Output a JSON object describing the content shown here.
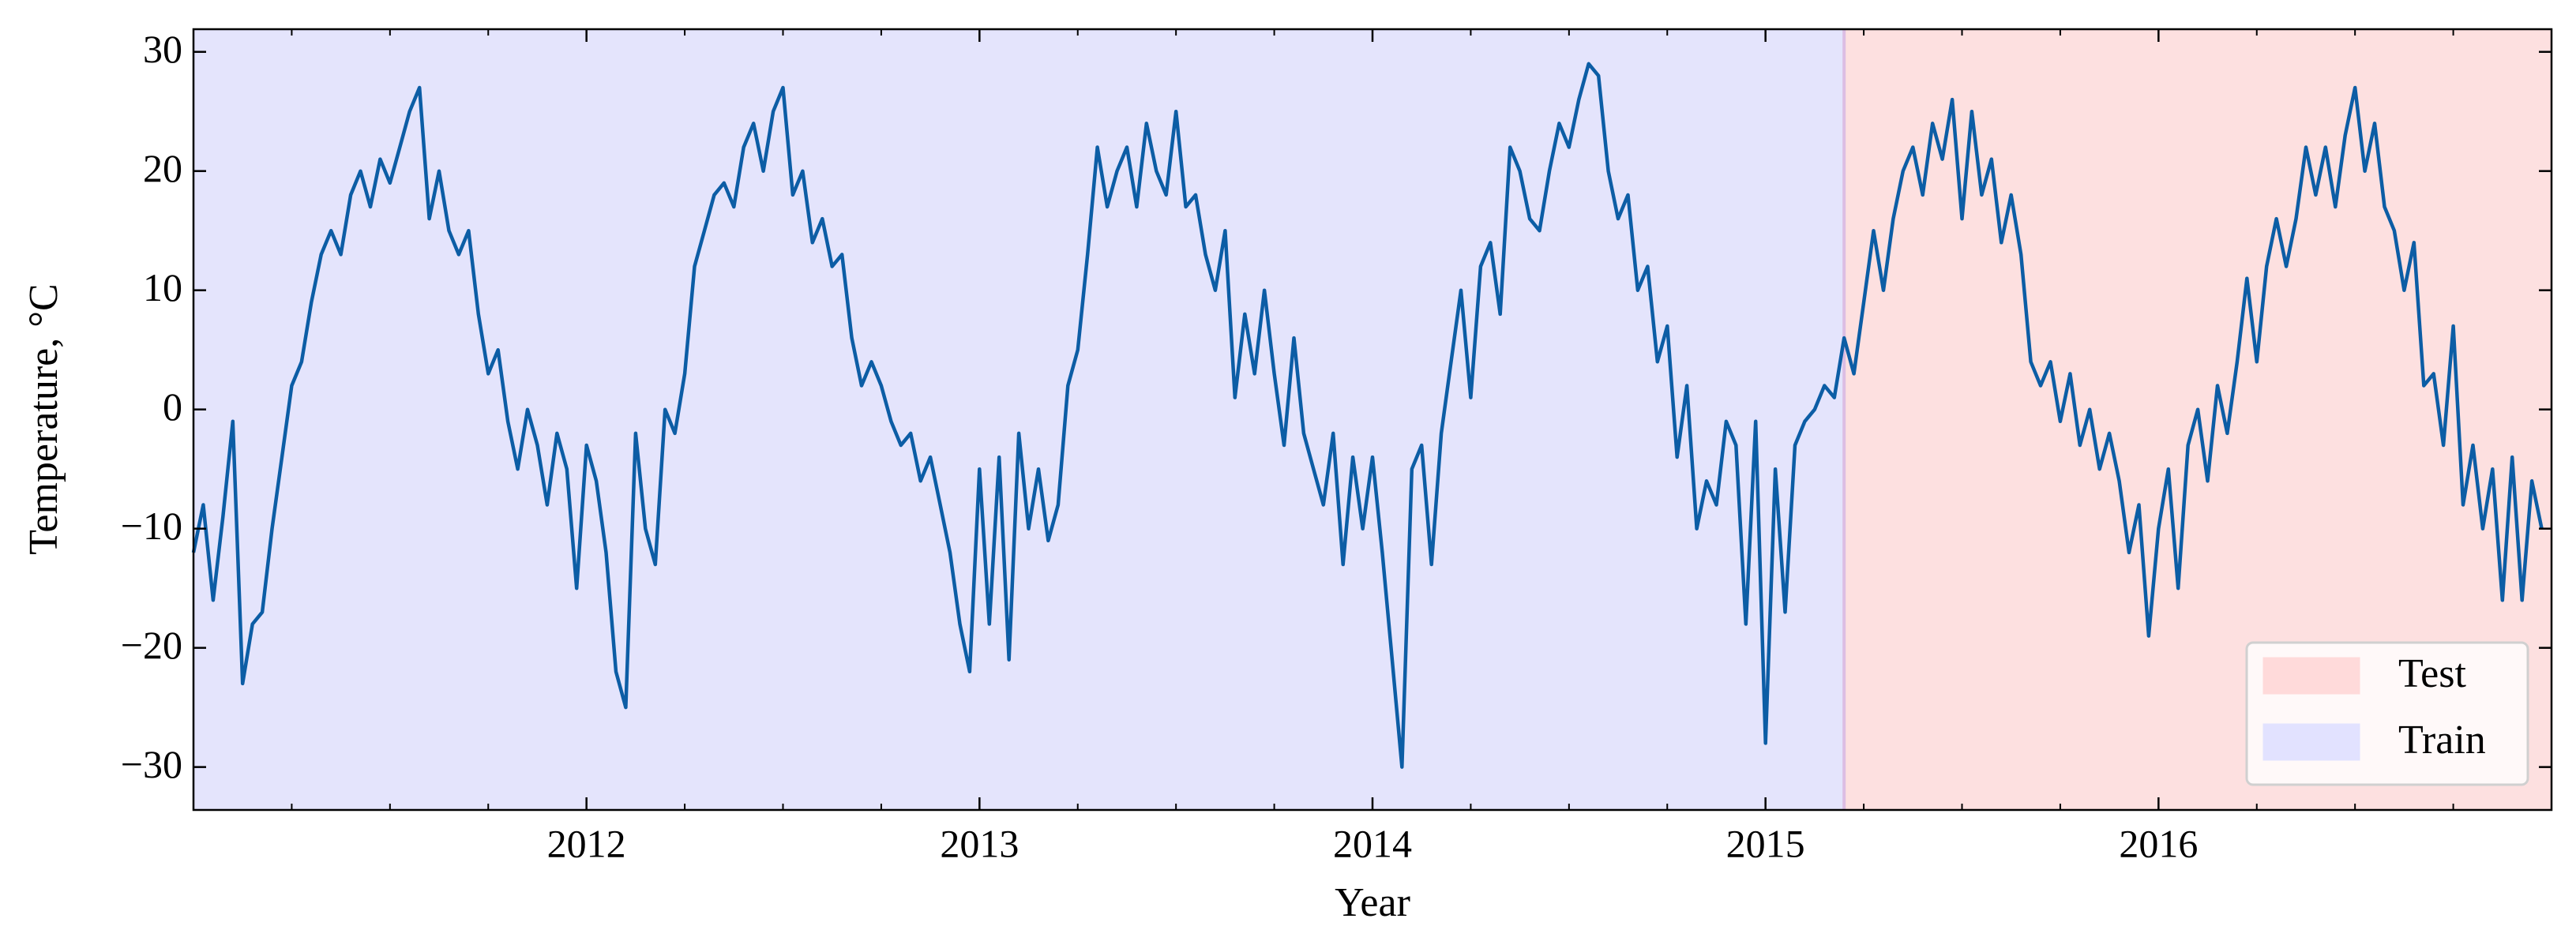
{
  "chart_data": {
    "type": "line",
    "xlabel": "Year",
    "ylabel": "Temperature, °C",
    "xlim": [
      2011.0,
      2017.0
    ],
    "ylim": [
      -33.6,
      31.9
    ],
    "xticks": [
      2012,
      2013,
      2014,
      2015,
      2016
    ],
    "xminorticks": [
      2011.25,
      2011.5,
      2011.75,
      2012.25,
      2012.5,
      2012.75,
      2013.25,
      2013.5,
      2013.75,
      2014.25,
      2014.5,
      2014.75,
      2015.25,
      2015.5,
      2015.75,
      2016.25,
      2016.5,
      2016.75
    ],
    "yticks": [
      {
        "value": -30,
        "label": "−30"
      },
      {
        "value": -20,
        "label": "−20"
      },
      {
        "value": -10,
        "label": "−10"
      },
      0,
      10,
      20,
      30
    ],
    "legend": "lower right",
    "regions": [
      {
        "name": "Test",
        "color": "#fde0e0",
        "x": [
          2015.2,
          2017.0
        ]
      },
      {
        "name": "Train",
        "color": "#e4e4fc",
        "x": [
          2011.0,
          2015.2
        ]
      }
    ],
    "series": [
      {
        "color": "#0c5da5",
        "x": [
          2011,
          2011.025,
          2011.05,
          2011.075,
          2011.1,
          2011.125,
          2011.15,
          2011.175,
          2011.2,
          2011.225,
          2011.25,
          2011.275,
          2011.3,
          2011.325,
          2011.35,
          2011.375,
          2011.4,
          2011.425,
          2011.45,
          2011.475,
          2011.5,
          2011.525,
          2011.55,
          2011.575,
          2011.6,
          2011.625,
          2011.65,
          2011.675,
          2011.7,
          2011.725,
          2011.75,
          2011.775,
          2011.8,
          2011.825,
          2011.85,
          2011.875,
          2011.9,
          2011.925,
          2011.95,
          2011.975,
          2012,
          2012.025,
          2012.05,
          2012.075,
          2012.1,
          2012.125,
          2012.15,
          2012.175,
          2012.2,
          2012.225,
          2012.25,
          2012.275,
          2012.3,
          2012.325,
          2012.35,
          2012.375,
          2012.4,
          2012.425,
          2012.45,
          2012.475,
          2012.5,
          2012.525,
          2012.55,
          2012.575,
          2012.6,
          2012.625,
          2012.65,
          2012.675,
          2012.7,
          2012.725,
          2012.75,
          2012.775,
          2012.8,
          2012.825,
          2012.85,
          2012.875,
          2012.9,
          2012.925,
          2012.95,
          2012.975,
          2013,
          2013.025,
          2013.05,
          2013.075,
          2013.1,
          2013.125,
          2013.15,
          2013.175,
          2013.2,
          2013.225,
          2013.25,
          2013.275,
          2013.3,
          2013.325,
          2013.35,
          2013.375,
          2013.4,
          2013.425,
          2013.45,
          2013.475,
          2013.5,
          2013.525,
          2013.55,
          2013.575,
          2013.6,
          2013.625,
          2013.65,
          2013.675,
          2013.7,
          2013.725,
          2013.75,
          2013.775,
          2013.8,
          2013.825,
          2013.85,
          2013.875,
          2013.9,
          2013.925,
          2013.95,
          2013.975,
          2014,
          2014.025,
          2014.05,
          2014.075,
          2014.1,
          2014.125,
          2014.15,
          2014.175,
          2014.2,
          2014.225,
          2014.25,
          2014.275,
          2014.3,
          2014.325,
          2014.35,
          2014.375,
          2014.4,
          2014.425,
          2014.45,
          2014.475,
          2014.5,
          2014.525,
          2014.55,
          2014.575,
          2014.6,
          2014.625,
          2014.65,
          2014.675,
          2014.7,
          2014.725,
          2014.75,
          2014.775,
          2014.8,
          2014.825,
          2014.85,
          2014.875,
          2014.9,
          2014.925,
          2014.95,
          2014.975,
          2015,
          2015.025,
          2015.05,
          2015.075,
          2015.1,
          2015.125,
          2015.15,
          2015.175,
          2015.2,
          2015.225,
          2015.25,
          2015.275,
          2015.3,
          2015.325,
          2015.35,
          2015.375,
          2015.4,
          2015.425,
          2015.45,
          2015.475,
          2015.5,
          2015.525,
          2015.55,
          2015.575,
          2015.6,
          2015.625,
          2015.65,
          2015.675,
          2015.7,
          2015.725,
          2015.75,
          2015.775,
          2015.8,
          2015.825,
          2015.85,
          2015.875,
          2015.9,
          2015.925,
          2015.95,
          2015.975,
          2016,
          2016.025,
          2016.05,
          2016.075,
          2016.1,
          2016.125,
          2016.15,
          2016.175,
          2016.2,
          2016.225,
          2016.25,
          2016.275,
          2016.3,
          2016.325,
          2016.35,
          2016.375,
          2016.4,
          2016.425,
          2016.45,
          2016.475,
          2016.5,
          2016.525,
          2016.55,
          2016.575,
          2016.6,
          2016.625,
          2016.65,
          2016.675,
          2016.7,
          2016.725,
          2016.75,
          2016.775,
          2016.8,
          2016.825,
          2016.85,
          2016.875,
          2016.9,
          2016.925,
          2016.95,
          2016.975
        ],
        "values": [
          -12,
          -8,
          -16,
          -9,
          -1,
          -23,
          -18,
          -17,
          -10,
          -4,
          2,
          4,
          9,
          13,
          15,
          13,
          18,
          20,
          17,
          21,
          19,
          22,
          25,
          27,
          16,
          20,
          15,
          13,
          15,
          8,
          3,
          5,
          -1,
          -5,
          0,
          -3,
          -8,
          -2,
          -5,
          -15,
          -3,
          -6,
          -12,
          -22,
          -25,
          -2,
          -10,
          -13,
          0,
          -2,
          3,
          12,
          15,
          18,
          19,
          17,
          22,
          24,
          20,
          25,
          27,
          18,
          20,
          14,
          16,
          12,
          13,
          6,
          2,
          4,
          2,
          -1,
          -3,
          -2,
          -6,
          -4,
          -8,
          -12,
          -18,
          -22,
          -5,
          -18,
          -4,
          -21,
          -2,
          -10,
          -5,
          -11,
          -8,
          2,
          5,
          13,
          22,
          17,
          20,
          22,
          17,
          24,
          20,
          18,
          25,
          17,
          18,
          13,
          10,
          15,
          1,
          8,
          3,
          10,
          3,
          -3,
          6,
          -2,
          -5,
          -8,
          -2,
          -13,
          -4,
          -10,
          -4,
          -12,
          -21,
          -30,
          -5,
          -3,
          -13,
          -2,
          4,
          10,
          1,
          12,
          14,
          8,
          22,
          20,
          16,
          15,
          20,
          24,
          22,
          26,
          29,
          28,
          20,
          16,
          18,
          10,
          12,
          4,
          7,
          -4,
          2,
          -10,
          -6,
          -8,
          -1,
          -3,
          -18,
          -1,
          -28,
          -5,
          -17,
          -3,
          -1,
          0,
          2,
          1,
          6,
          3,
          9,
          15,
          10,
          16,
          20,
          22,
          18,
          24,
          21,
          26,
          16,
          25,
          18,
          21,
          14,
          18,
          13,
          4,
          2,
          4,
          -1,
          3,
          -3,
          0,
          -5,
          -2,
          -6,
          -12,
          -8,
          -19,
          -10,
          -5,
          -15,
          -3,
          0,
          -6,
          2,
          -2,
          4,
          11,
          4,
          12,
          16,
          12,
          16,
          22,
          18,
          22,
          17,
          23,
          27,
          20,
          24,
          17,
          15,
          10,
          14,
          2,
          3,
          -3,
          7,
          -8,
          -3,
          -10,
          -5,
          -16,
          -4,
          -16,
          -6,
          -10
        ]
      }
    ]
  }
}
